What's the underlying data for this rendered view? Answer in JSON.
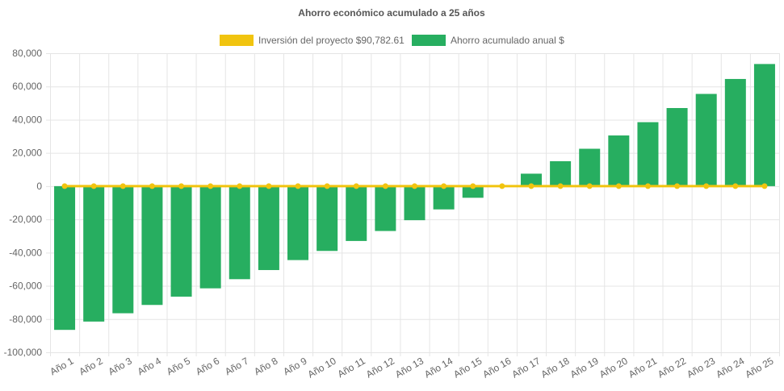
{
  "chart_data": {
    "type": "bar",
    "title": "Ahorro económico acumulado a 25 años",
    "legend_position": "top",
    "grid": true,
    "categories": [
      "Año 1",
      "Año 2",
      "Año 3",
      "Año 4",
      "Año 5",
      "Año 6",
      "Año 7",
      "Año 8",
      "Año 9",
      "Año 10",
      "Año 11",
      "Año 12",
      "Año 13",
      "Año 14",
      "Año 15",
      "Año 16",
      "Año 17",
      "Año 18",
      "Año 19",
      "Año 20",
      "Año 21",
      "Año 22",
      "Año 23",
      "Año 24",
      "Año 25"
    ],
    "ylim": [
      -100000,
      80000
    ],
    "yticks": [
      80000,
      60000,
      40000,
      20000,
      0,
      -20000,
      -40000,
      -60000,
      -80000,
      -100000
    ],
    "ytick_labels": [
      "80,000",
      "60,000",
      "40,000",
      "20,000",
      "0",
      "-20,000",
      "-40,000",
      "-60,000",
      "-80,000",
      "-100,000"
    ],
    "series": [
      {
        "name": "Inversión del proyecto $90,782.61",
        "type": "line",
        "color": "#f1c40f",
        "values": [
          0,
          0,
          0,
          0,
          0,
          0,
          0,
          0,
          0,
          0,
          0,
          0,
          0,
          0,
          0,
          0,
          0,
          0,
          0,
          0,
          0,
          0,
          0,
          0,
          0
        ]
      },
      {
        "name": "Ahorro acumulado anual $",
        "type": "bar",
        "color": "#27ae60",
        "values": [
          -86500,
          -81500,
          -76500,
          -71500,
          -66500,
          -61500,
          -56000,
          -50500,
          -44500,
          -39000,
          -33000,
          -27000,
          -20500,
          -14000,
          -7000,
          0,
          7500,
          15000,
          22500,
          30500,
          38500,
          47000,
          55500,
          64500,
          73500
        ]
      }
    ]
  }
}
